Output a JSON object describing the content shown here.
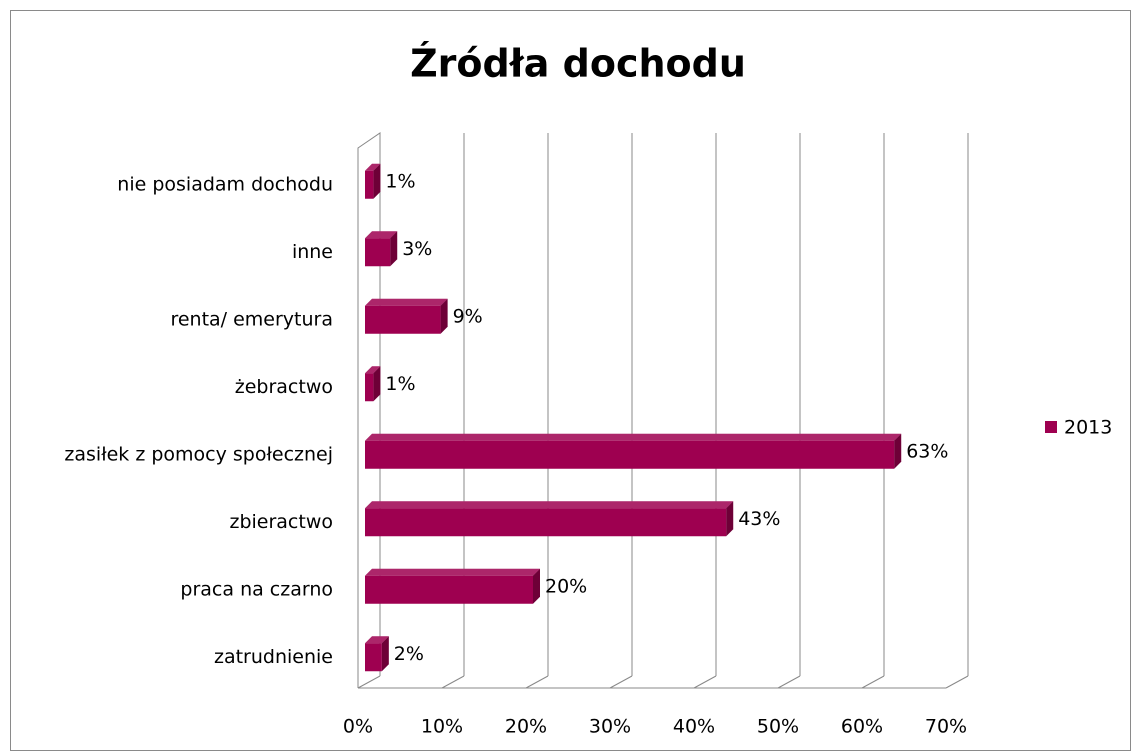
{
  "chart_data": {
    "type": "bar",
    "title": "Źródła dochodu",
    "categories": [
      "nie posiadam dochodu",
      "inne",
      "renta/ emerytura",
      "żebractwo",
      "zasiłek z pomocy społecznej",
      "zbieractwo",
      "praca na czarno",
      "zatrudnienie"
    ],
    "series": [
      {
        "name": "2013",
        "color": "#9e0050",
        "values": [
          1,
          3,
          9,
          1,
          63,
          43,
          20,
          2
        ],
        "value_labels": [
          "1%",
          "3%",
          "9%",
          "1%",
          "63%",
          "43%",
          "20%",
          "2%"
        ]
      }
    ],
    "xlim": [
      0,
      70
    ],
    "xticks": [
      {
        "value": 0,
        "label": "0%"
      },
      {
        "value": 10,
        "label": "10%"
      },
      {
        "value": 20,
        "label": "20%"
      },
      {
        "value": 30,
        "label": "30%"
      },
      {
        "value": 40,
        "label": "40%"
      },
      {
        "value": 50,
        "label": "50%"
      },
      {
        "value": 60,
        "label": "60%"
      },
      {
        "value": 70,
        "label": "70%"
      }
    ],
    "grid": true,
    "legend": "right"
  }
}
